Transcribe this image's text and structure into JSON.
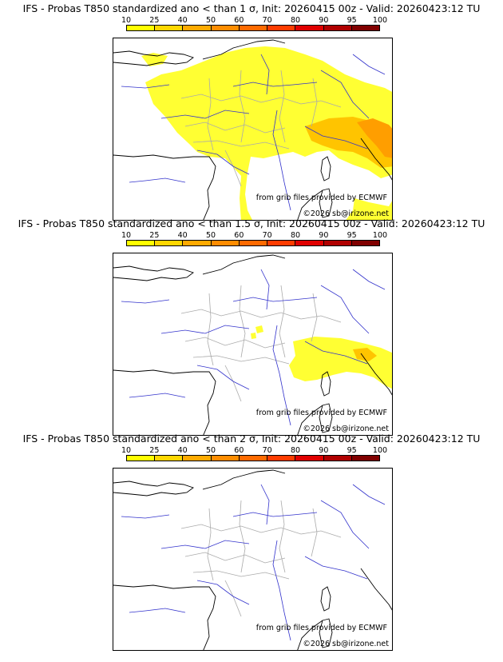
{
  "colorbar": {
    "ticks": [
      "10",
      "25",
      "40",
      "50",
      "60",
      "70",
      "80",
      "90",
      "95",
      "100"
    ],
    "colors": [
      "#ffff00",
      "#ffd700",
      "#ffaa00",
      "#ff8c00",
      "#ff6a00",
      "#ff3c00",
      "#e00000",
      "#b00000",
      "#800000"
    ]
  },
  "panels": [
    {
      "title": "IFS - Probas T850  standardized ano < than 1 σ, Init: 20260415 00z - Valid: 20260423:12 TU",
      "level": "high"
    },
    {
      "title": "IFS - Probas T850  standardized ano < than 1.5 σ, Init: 20260415 00z - Valid: 20260423:12 TU",
      "level": "medium"
    },
    {
      "title": "IFS - Probas T850  standardized ano < than 2 σ, Init: 20260415 00z - Valid: 20260423:12 TU",
      "level": "none"
    }
  ],
  "credits": {
    "source": "from grib files provided by ECMWF",
    "copyright": "©2026 sb@irizone.net"
  },
  "colors": {
    "yellow": "#ffff33",
    "orange": "#ffc400",
    "deep_orange": "#ff9e00",
    "coast": "#000000",
    "rivers": "#3333cc",
    "borders": "#aaaaaa"
  }
}
